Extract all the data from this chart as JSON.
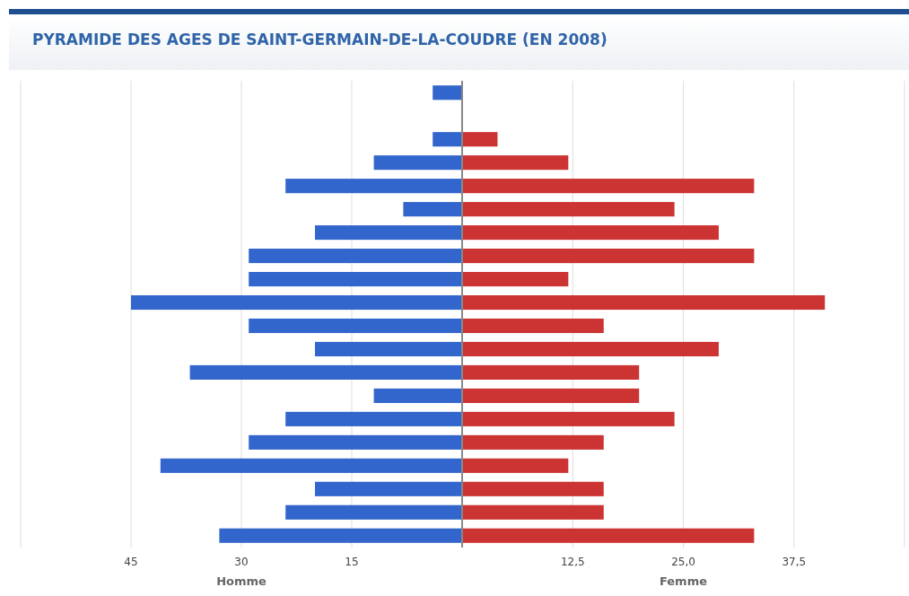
{
  "chart_data": [
    {
      "type": "bar",
      "orientation": "horizontal",
      "title": "PYRAMIDE DES AGES DE SAINT-GERMAIN-DE-LA-COUDRE (EN 2008)",
      "xlabel": "Homme",
      "categories": [
        null,
        null,
        null,
        null,
        null,
        null,
        null,
        null,
        null,
        null,
        null,
        null,
        null,
        null,
        null,
        null,
        null,
        null,
        null,
        null
      ],
      "values": [
        4,
        0,
        4,
        12,
        24,
        8,
        20,
        29,
        29,
        45,
        29,
        20,
        37,
        12,
        24,
        29,
        41,
        20,
        24,
        33
      ],
      "color": "#3366cc",
      "xlim": [
        60,
        0
      ],
      "xticks": [
        {
          "value": 60,
          "label": null
        },
        45,
        30,
        15
      ],
      "grid": "x",
      "tick_labels": "x"
    },
    {
      "type": "bar",
      "orientation": "horizontal",
      "xlabel": "Femme",
      "categories": [
        null,
        null,
        null,
        null,
        null,
        null,
        null,
        null,
        null,
        null,
        null,
        null,
        null,
        null,
        null,
        null,
        null,
        null,
        null,
        null
      ],
      "values": [
        0,
        0,
        4,
        12,
        33,
        24,
        29,
        33,
        12,
        41,
        16,
        29,
        20,
        20,
        24,
        16,
        12,
        16,
        16,
        33
      ],
      "color": "#cc3333",
      "xlim": [
        0,
        50
      ],
      "xticks": [
        {
          "value": 12.5,
          "label": "12,5"
        },
        {
          "value": 25,
          "label": "25,0"
        },
        {
          "value": 37.5,
          "label": "37,5"
        },
        {
          "value": 50,
          "label": null
        }
      ],
      "grid": "x",
      "tick_labels": "x"
    }
  ]
}
